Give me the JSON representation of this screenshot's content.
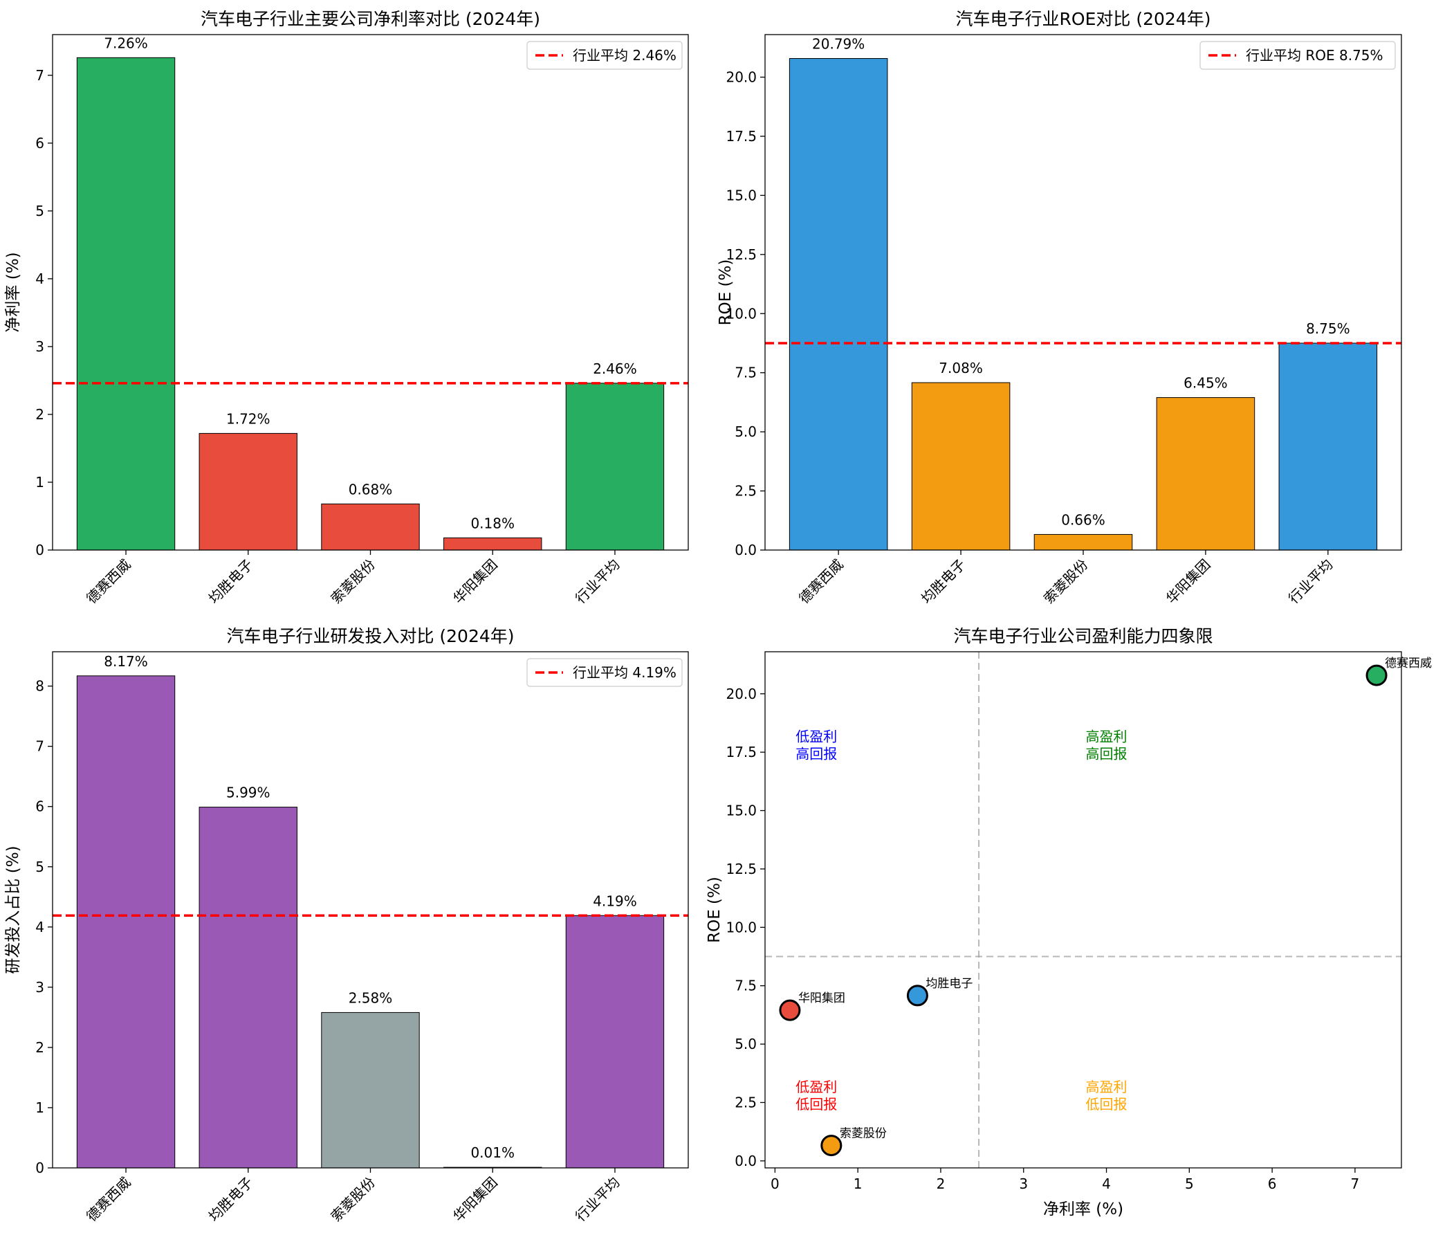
{
  "figure": {
    "panels": [
      "net-margin",
      "roe",
      "rd",
      "quadrant"
    ]
  },
  "chart_data": [
    {
      "id": "net-margin",
      "type": "bar",
      "title": "汽车电子行业主要公司净利率对比 (2024年)",
      "xlabel": "",
      "ylabel": "净利率 (%)",
      "categories": [
        "德赛西威",
        "均胜电子",
        "索菱股份",
        "华阳集团",
        "行业平均"
      ],
      "values": [
        7.26,
        1.72,
        0.68,
        0.18,
        2.46
      ],
      "value_labels": [
        "7.26%",
        "1.72%",
        "0.68%",
        "0.18%",
        "2.46%"
      ],
      "colors": [
        "#27ae60",
        "#e74c3c",
        "#e74c3c",
        "#e74c3c",
        "#27ae60"
      ],
      "ylim": [
        0,
        7.6
      ],
      "yticks": [
        0,
        1,
        2,
        3,
        4,
        5,
        6,
        7
      ],
      "ytick_labels": [
        "0",
        "1",
        "2",
        "3",
        "4",
        "5",
        "6",
        "7"
      ],
      "reference_line": {
        "value": 2.46,
        "color": "#ff0000",
        "label": "行业平均 2.46%"
      },
      "legend": "top-right"
    },
    {
      "id": "roe",
      "type": "bar",
      "title": "汽车电子行业ROE对比 (2024年)",
      "xlabel": "",
      "ylabel": "ROE (%)",
      "categories": [
        "德赛西威",
        "均胜电子",
        "索菱股份",
        "华阳集团",
        "行业平均"
      ],
      "values": [
        20.79,
        7.08,
        0.66,
        6.45,
        8.75
      ],
      "value_labels": [
        "20.79%",
        "7.08%",
        "0.66%",
        "6.45%",
        "8.75%"
      ],
      "colors": [
        "#3498db",
        "#f39c12",
        "#f39c12",
        "#f39c12",
        "#3498db"
      ],
      "ylim": [
        0,
        21.8
      ],
      "yticks": [
        0,
        2.5,
        5,
        7.5,
        10,
        12.5,
        15,
        17.5,
        20
      ],
      "ytick_labels": [
        "0.0",
        "2.5",
        "5.0",
        "7.5",
        "10.0",
        "12.5",
        "15.0",
        "17.5",
        "20.0"
      ],
      "reference_line": {
        "value": 8.75,
        "color": "#ff0000",
        "label": "行业平均 ROE 8.75%"
      },
      "legend": "top-right"
    },
    {
      "id": "rd",
      "type": "bar",
      "title": "汽车电子行业研发投入对比 (2024年)",
      "xlabel": "",
      "ylabel": "研发投入占比 (%)",
      "categories": [
        "德赛西威",
        "均胜电子",
        "索菱股份",
        "华阳集团",
        "行业平均"
      ],
      "values": [
        8.17,
        5.99,
        2.58,
        0.01,
        4.19
      ],
      "value_labels": [
        "8.17%",
        "5.99%",
        "2.58%",
        "0.01%",
        "4.19%"
      ],
      "colors": [
        "#9b59b6",
        "#9b59b6",
        "#95a5a6",
        "#95a5a6",
        "#9b59b6"
      ],
      "ylim": [
        0,
        8.57
      ],
      "yticks": [
        0,
        1,
        2,
        3,
        4,
        5,
        6,
        7,
        8
      ],
      "ytick_labels": [
        "0",
        "1",
        "2",
        "3",
        "4",
        "5",
        "6",
        "7",
        "8"
      ],
      "reference_line": {
        "value": 4.19,
        "color": "#ff0000",
        "label": "行业平均 4.19%"
      },
      "legend": "top-right"
    },
    {
      "id": "quadrant",
      "type": "scatter",
      "title": "汽车电子行业公司盈利能力四象限",
      "xlabel": "净利率 (%)",
      "ylabel": "ROE (%)",
      "xlim": [
        -0.12,
        7.56
      ],
      "ylim": [
        -0.3,
        21.8
      ],
      "xticks": [
        0,
        1,
        2,
        3,
        4,
        5,
        6,
        7
      ],
      "xtick_labels": [
        "0",
        "1",
        "2",
        "3",
        "4",
        "5",
        "6",
        "7"
      ],
      "yticks": [
        0,
        2.5,
        5,
        7.5,
        10,
        12.5,
        15,
        17.5,
        20
      ],
      "ytick_labels": [
        "0.0",
        "2.5",
        "5.0",
        "7.5",
        "10.0",
        "12.5",
        "15.0",
        "17.5",
        "20.0"
      ],
      "points": [
        {
          "name": "德赛西威",
          "x": 7.26,
          "y": 20.79,
          "color": "#27ae60"
        },
        {
          "name": "均胜电子",
          "x": 1.72,
          "y": 7.08,
          "color": "#3498db"
        },
        {
          "name": "索菱股份",
          "x": 0.68,
          "y": 0.66,
          "color": "#f39c12"
        },
        {
          "name": "华阳集团",
          "x": 0.18,
          "y": 6.45,
          "color": "#e74c3c"
        }
      ],
      "vline": 2.46,
      "hline": 8.75,
      "quadrant_labels": [
        {
          "lines": [
            "低盈利",
            "高回报"
          ],
          "x": 0.5,
          "y": 17.9,
          "color": "#0000ff"
        },
        {
          "lines": [
            "高盈利",
            "高回报"
          ],
          "x": 4.0,
          "y": 17.9,
          "color": "#008000"
        },
        {
          "lines": [
            "低盈利",
            "低回报"
          ],
          "x": 0.5,
          "y": 2.9,
          "color": "#ff0000"
        },
        {
          "lines": [
            "高盈利",
            "低回报"
          ],
          "x": 4.0,
          "y": 2.9,
          "color": "#ffa500"
        }
      ]
    }
  ]
}
